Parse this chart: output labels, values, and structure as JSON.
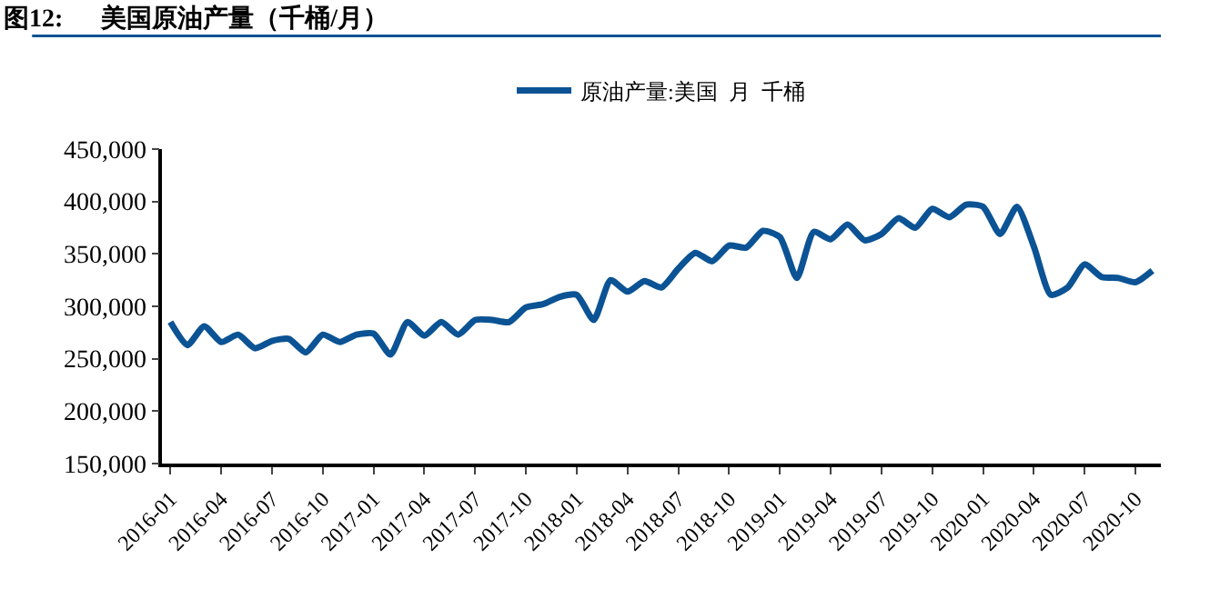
{
  "chart_data": {
    "type": "line",
    "title": "图12:      美国原油产量（千桶/月）",
    "categories": [
      "2016-01",
      null,
      null,
      "2016-04",
      null,
      null,
      "2016-07",
      null,
      null,
      "2016-10",
      null,
      null,
      "2017-01",
      null,
      null,
      "2017-04",
      null,
      null,
      "2017-07",
      null,
      null,
      "2017-10",
      null,
      null,
      "2018-01",
      null,
      null,
      "2018-04",
      null,
      null,
      "2018-07",
      null,
      null,
      "2018-10",
      null,
      null,
      "2019-01",
      null,
      null,
      "2019-04",
      null,
      null,
      "2019-07",
      null,
      null,
      "2019-10",
      null,
      null,
      "2020-01",
      null,
      null,
      "2020-04",
      null,
      null,
      "2020-07",
      null,
      null,
      "2020-10",
      null
    ],
    "series": [
      {
        "name": "原油产量:美国  月  千桶",
        "color": "#0b5394",
        "values": [
          285000,
          263000,
          281000,
          266000,
          273000,
          260000,
          267000,
          269000,
          256000,
          273000,
          266000,
          273000,
          274000,
          254000,
          285000,
          272000,
          285000,
          273000,
          287000,
          287000,
          285000,
          299000,
          302000,
          309000,
          311000,
          287000,
          325000,
          314000,
          324000,
          318000,
          336000,
          351000,
          343000,
          358000,
          356000,
          372000,
          366000,
          327000,
          371000,
          364000,
          378000,
          363000,
          369000,
          384000,
          375000,
          393000,
          385000,
          397000,
          395000,
          369000,
          395000,
          357000,
          311000,
          318000,
          340000,
          328000,
          327000,
          323000,
          334000
        ]
      }
    ],
    "ylim": [
      150000,
      450000
    ],
    "yticks": [
      {
        "value": 150000,
        "label": "150,000"
      },
      {
        "value": 200000,
        "label": "200,000"
      },
      {
        "value": 250000,
        "label": "250,000"
      },
      {
        "value": 300000,
        "label": "300,000"
      },
      {
        "value": 350000,
        "label": "350,000"
      },
      {
        "value": 400000,
        "label": "400,000"
      },
      {
        "value": 450000,
        "label": "450,000"
      }
    ],
    "legend": "top",
    "marker": "none",
    "line_style": "solid"
  }
}
